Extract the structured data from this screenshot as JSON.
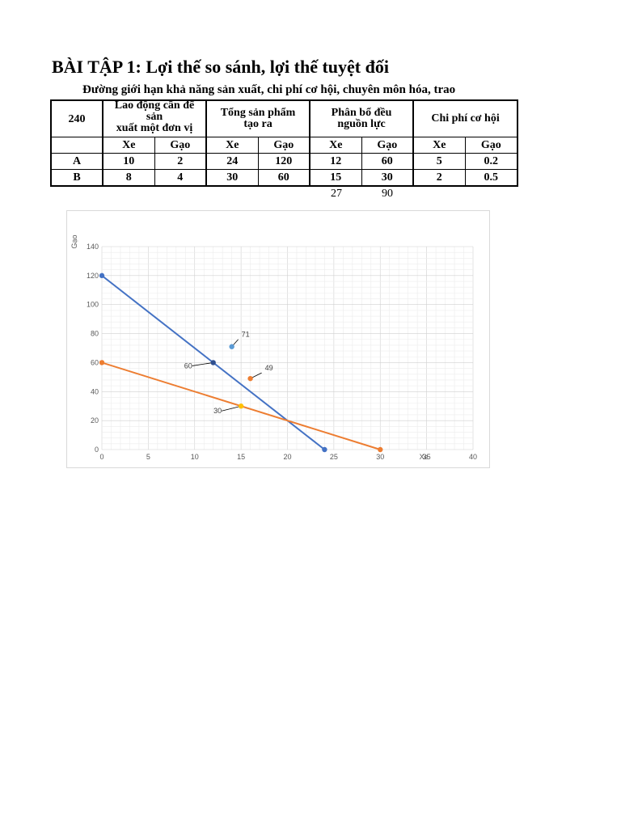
{
  "title": "BÀI TẬP 1: Lợi thế so sánh, lợi thế tuyệt đối",
  "subtitle": "Đường giới hạn khả năng sản xuất, chi phí cơ hội, chuyên môn hóa, trao",
  "table": {
    "corner": "240",
    "groups": [
      {
        "lines": [
          "Lao động cần để",
          "sản",
          "xuất một đơn vị"
        ]
      },
      {
        "lines": [
          "Tổng sản phẩm",
          "tạo ra"
        ]
      },
      {
        "lines": [
          "Phân bổ đều",
          "nguồn lực"
        ]
      },
      {
        "lines": [
          "Chi phí cơ hội"
        ]
      }
    ],
    "subheaders": [
      "Xe",
      "Gạo",
      "Xe",
      "Gạo",
      "Xe",
      "Gạo",
      "Xe",
      "Gạo"
    ],
    "rows": [
      {
        "label": "A",
        "values": [
          "10",
          "2",
          "24",
          "120",
          "12",
          "60",
          "5",
          "0.2"
        ]
      },
      {
        "label": "B",
        "values": [
          "8",
          "4",
          "30",
          "60",
          "15",
          "30",
          "2",
          "0.5"
        ]
      }
    ],
    "extra": [
      "27",
      "90"
    ]
  },
  "chart_data": {
    "type": "scatter",
    "xlabel": "Xe",
    "ylabel": "Gạo",
    "xlim": [
      0,
      40
    ],
    "ylim": [
      0,
      140
    ],
    "xticks": [
      0,
      5,
      10,
      15,
      20,
      25,
      30,
      35,
      40
    ],
    "yticks": [
      0,
      20,
      40,
      60,
      80,
      100,
      120,
      140
    ],
    "grid": true,
    "series": [
      {
        "color": "#4472c4",
        "line": true,
        "points": [
          [
            0,
            120
          ],
          [
            24,
            0
          ]
        ]
      },
      {
        "color": "#ed7d31",
        "line": true,
        "points": [
          [
            0,
            60
          ],
          [
            30,
            0
          ]
        ]
      }
    ],
    "markers": [
      {
        "x": 12,
        "y": 60,
        "color": "#2f4f8f",
        "label": "60"
      },
      {
        "x": 15,
        "y": 30,
        "color": "#ffc000",
        "label": "30"
      },
      {
        "x": 14,
        "y": 71,
        "color": "#5b9bd5",
        "label": "71"
      },
      {
        "x": 16,
        "y": 49,
        "color": "#ed7d31",
        "label": "49"
      }
    ]
  }
}
